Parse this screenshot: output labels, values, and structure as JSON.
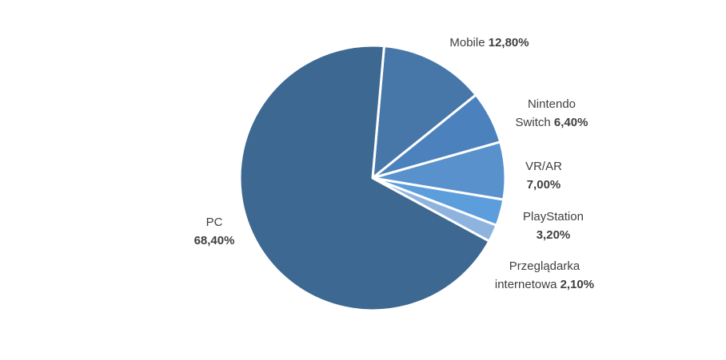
{
  "chart_data": {
    "type": "pie",
    "slices": [
      {
        "label": "Mobile",
        "value": 12.8,
        "value_text": "12,80%",
        "color": "#4777a8"
      },
      {
        "label": "Nintendo Switch",
        "value": 6.4,
        "value_text": "6,40%",
        "color": "#4b82bd"
      },
      {
        "label": "VR/AR",
        "value": 7.0,
        "value_text": "7,00%",
        "color": "#5891cb"
      },
      {
        "label": "PlayStation",
        "value": 3.2,
        "value_text": "3,20%",
        "color": "#5c9ddc"
      },
      {
        "label": "Przeglądarka internetowa",
        "value": 2.1,
        "value_text": "2,10%",
        "color": "#8fb3df"
      },
      {
        "label": "PC",
        "value": 68.4,
        "value_text": "68,40%",
        "color": "#3d6891"
      }
    ],
    "start_angle_deg": 5,
    "direction": "clockwise",
    "label_lines": [
      [
        "Mobile ",
        "{v}"
      ],
      [
        "Nintendo",
        "Switch {v}"
      ],
      [
        "VR/AR",
        "{v}"
      ],
      [
        "PlayStation",
        "{v}"
      ],
      [
        "Przeglądarka",
        "internetowa {v}"
      ],
      [
        "PC",
        "{v}"
      ]
    ]
  }
}
